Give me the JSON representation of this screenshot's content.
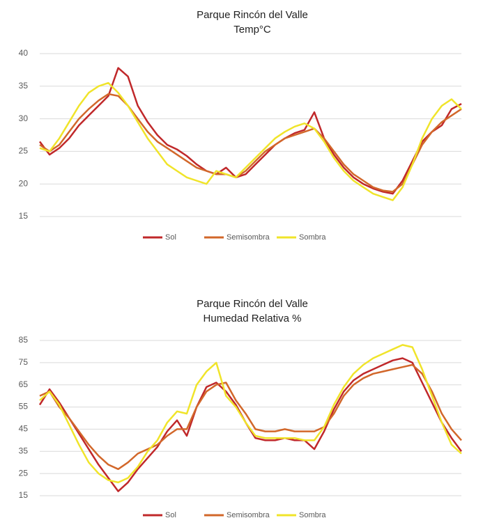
{
  "chart_data": [
    {
      "type": "line",
      "title": "Parque Rincón del Valle",
      "subtitle": "Temp°C",
      "categories": [
        null,
        null,
        null,
        null,
        null,
        null,
        null,
        null,
        null,
        null,
        null,
        null,
        null,
        null,
        null,
        null,
        null,
        null,
        null,
        null,
        null,
        null,
        null,
        null,
        null,
        null,
        null,
        null,
        null,
        null,
        null,
        null,
        null,
        null,
        null,
        null,
        null,
        null,
        null,
        null,
        null,
        null,
        null,
        null
      ],
      "ylim": [
        15,
        40
      ],
      "yticks": [
        15,
        20,
        25,
        30,
        35,
        40
      ],
      "grid": true,
      "legend": "bottom",
      "series": [
        {
          "name": "Sol",
          "color": "#c0282a",
          "values": [
            26.5,
            24.5,
            25.5,
            27,
            29,
            30.5,
            32,
            33.5,
            37.8,
            36.5,
            32,
            29.5,
            27.5,
            26,
            25.3,
            24.3,
            23,
            22,
            21.5,
            22.5,
            21,
            21.5,
            23,
            24.5,
            26,
            27,
            27.8,
            28.3,
            31,
            27,
            24.5,
            22.5,
            21,
            20,
            19.3,
            18.8,
            18.5,
            20.5,
            23.5,
            26.5,
            28,
            29,
            31.5,
            32.3
          ]
        },
        {
          "name": "Semisombra",
          "color": "#d2672a",
          "values": [
            26,
            25,
            26,
            28,
            30,
            31.5,
            32.8,
            33.8,
            33.5,
            32,
            30,
            28,
            26.5,
            25.5,
            24.5,
            23.5,
            22.5,
            22,
            21.5,
            21.5,
            21,
            22,
            23.5,
            25,
            26,
            27,
            27.5,
            28,
            28.5,
            27,
            25,
            23,
            21.5,
            20.5,
            19.5,
            19,
            18.8,
            20,
            23,
            26,
            28,
            29.5,
            30.5,
            31.5
          ]
        },
        {
          "name": "Sombra",
          "color": "#f0e42a",
          "values": [
            25.5,
            25,
            27,
            29.5,
            32,
            34,
            35,
            35.5,
            34,
            32,
            29.5,
            27,
            25,
            23,
            22,
            21,
            20.5,
            20,
            22,
            21.5,
            21,
            22.5,
            24,
            25.5,
            27,
            28,
            28.8,
            29.3,
            28.5,
            26.5,
            24,
            22,
            20.5,
            19.5,
            18.5,
            18,
            17.5,
            19.5,
            23,
            27,
            30,
            32,
            33,
            31.5
          ]
        }
      ]
    },
    {
      "type": "line",
      "title": "Parque Rincón del Valle",
      "subtitle": "Humedad Relativa %",
      "categories": [
        null,
        null,
        null,
        null,
        null,
        null,
        null,
        null,
        null,
        null,
        null,
        null,
        null,
        null,
        null,
        null,
        null,
        null,
        null,
        null,
        null,
        null,
        null,
        null,
        null,
        null,
        null,
        null,
        null,
        null,
        null,
        null,
        null,
        null,
        null,
        null,
        null,
        null,
        null,
        null,
        null,
        null,
        null,
        null
      ],
      "ylim": [
        15,
        85
      ],
      "yticks": [
        15,
        25,
        35,
        45,
        55,
        65,
        75,
        85
      ],
      "grid": true,
      "legend": "bottom",
      "series": [
        {
          "name": "Sol",
          "color": "#c0282a",
          "values": [
            56,
            63,
            57,
            50,
            43,
            36,
            29,
            23,
            17,
            21,
            27,
            32,
            37,
            44,
            49,
            42,
            55,
            64,
            66,
            62,
            56,
            48,
            41,
            40,
            40,
            41,
            40,
            40,
            36,
            44,
            54,
            62,
            67,
            70,
            72,
            74,
            76,
            77,
            75,
            66,
            57,
            48,
            41,
            35
          ]
        },
        {
          "name": "Semisombra",
          "color": "#d2672a",
          "values": [
            60,
            62,
            55,
            50,
            44,
            38,
            33,
            29,
            27,
            30,
            34,
            36,
            38,
            42,
            45,
            45,
            55,
            62,
            65,
            66,
            58,
            52,
            45,
            44,
            44,
            45,
            44,
            44,
            44,
            46,
            52,
            60,
            65,
            68,
            70,
            71,
            72,
            73,
            74,
            70,
            62,
            52,
            45,
            40
          ]
        },
        {
          "name": "Sombra",
          "color": "#f0e42a",
          "values": [
            58,
            62,
            56,
            47,
            38,
            30,
            25,
            22,
            21,
            23,
            28,
            35,
            40,
            48,
            53,
            52,
            65,
            71,
            75,
            60,
            55,
            48,
            42,
            41,
            41,
            41,
            41,
            40,
            40,
            46,
            56,
            64,
            70,
            74,
            77,
            79,
            81,
            83,
            82,
            72,
            60,
            48,
            38,
            34
          ]
        }
      ]
    }
  ]
}
